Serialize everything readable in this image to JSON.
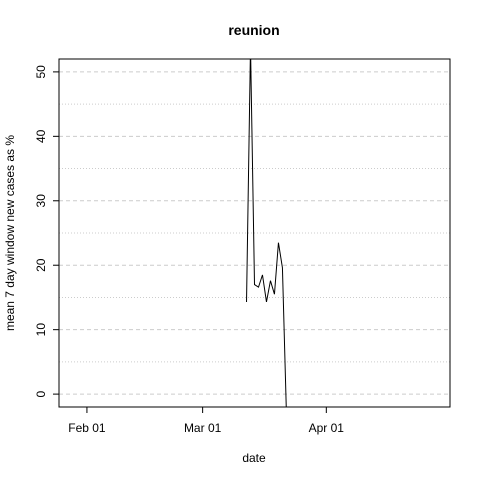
{
  "chart_data": {
    "type": "line",
    "title": "reunion",
    "xlabel": "date",
    "ylabel": "mean  7  day window new cases as %",
    "x_ticks": [
      {
        "label": "Feb 01",
        "date": "2020-02-01"
      },
      {
        "label": "Mar 01",
        "date": "2020-03-01"
      },
      {
        "label": "Apr 01",
        "date": "2020-04-01"
      }
    ],
    "y_ticks": [
      0,
      10,
      20,
      30,
      40,
      50
    ],
    "xlim": [
      "2020-01-25",
      "2020-05-02"
    ],
    "ylim": [
      -2,
      52
    ],
    "grid": {
      "major_y": "dashed",
      "minor_y": "dotted"
    },
    "series": [
      {
        "color": "#000000",
        "points": [
          {
            "x": "2020-03-12",
            "y": 14.3
          },
          {
            "x": "2020-03-13",
            "y": 54
          },
          {
            "x": "2020-03-14",
            "y": 17
          },
          {
            "x": "2020-03-15",
            "y": 16.6
          },
          {
            "x": "2020-03-16",
            "y": 18.5
          },
          {
            "x": "2020-03-17",
            "y": 14.3
          },
          {
            "x": "2020-03-18",
            "y": 17.6
          },
          {
            "x": "2020-03-19",
            "y": 15.5
          },
          {
            "x": "2020-03-20",
            "y": 23.5
          },
          {
            "x": "2020-03-21",
            "y": 19.6
          },
          {
            "x": "2020-03-22",
            "y": -3
          }
        ]
      }
    ]
  }
}
